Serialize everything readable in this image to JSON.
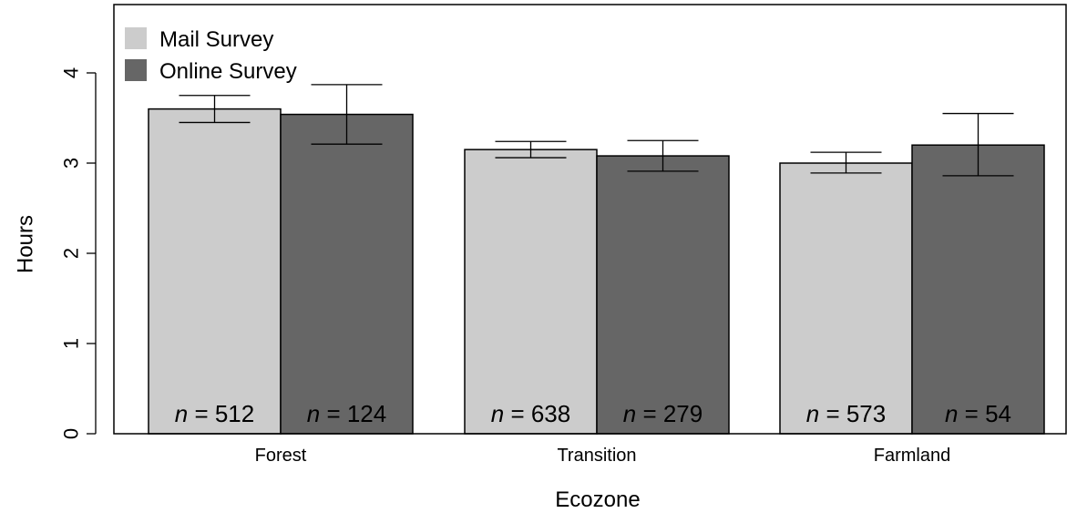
{
  "chart_data": {
    "type": "bar",
    "xlabel": "Ecozone",
    "ylabel": "Hours",
    "ylim": [
      0,
      4.75
    ],
    "yticks": [
      0,
      1,
      2,
      3,
      4
    ],
    "categories": [
      "Forest",
      "Transition",
      "Farmland"
    ],
    "legend_position": "top-left",
    "grid": false,
    "series": [
      {
        "name": "Mail Survey",
        "color": "#cccccc",
        "values": [
          3.6,
          3.15,
          3.0
        ],
        "error_low": [
          3.45,
          3.06,
          2.89
        ],
        "error_high": [
          3.75,
          3.24,
          3.12
        ],
        "n_labels": [
          "n = 512",
          "n = 638",
          "n = 573"
        ]
      },
      {
        "name": "Online Survey",
        "color": "#666666",
        "values": [
          3.54,
          3.08,
          3.2
        ],
        "error_low": [
          3.21,
          2.91,
          2.86
        ],
        "error_high": [
          3.87,
          3.25,
          3.55
        ],
        "n_labels": [
          "n = 124",
          "n = 279",
          "n = 54"
        ]
      }
    ]
  }
}
